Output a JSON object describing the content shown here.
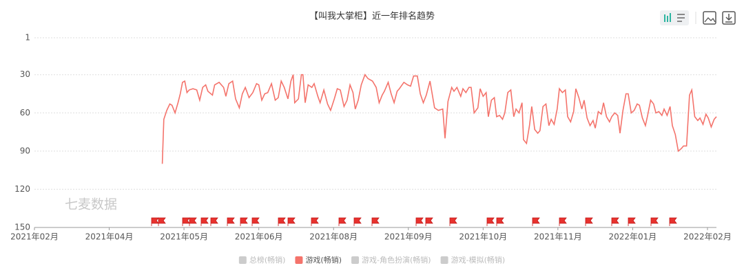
{
  "chart_data": {
    "type": "line",
    "title": "【叫我大掌柜】近一年排名趋势",
    "watermark": "七麦数据",
    "xlim": [
      0,
      9.12
    ],
    "xticks": [
      {
        "value": 0,
        "label": "2021年02月"
      },
      {
        "value": 1,
        "label": "2021年04月"
      },
      {
        "value": 2,
        "label": "2021年05月"
      },
      {
        "value": 3,
        "label": "2021年06月"
      },
      {
        "value": 4,
        "label": "2021年08月"
      },
      {
        "value": 5,
        "label": "2021年09月"
      },
      {
        "value": 6,
        "label": "2021年10月"
      },
      {
        "value": 7,
        "label": "2021年11月"
      },
      {
        "value": 8,
        "label": "2022年01月"
      },
      {
        "value": 9,
        "label": "2022年02月"
      }
    ],
    "ylim": [
      150,
      1
    ],
    "yticks": [
      1,
      30,
      60,
      90,
      120,
      150
    ],
    "grid": true,
    "x": [
      1.71,
      1.73,
      1.77,
      1.81,
      1.84,
      1.88,
      1.92,
      1.95,
      1.98,
      2.01,
      2.04,
      2.07,
      2.12,
      2.17,
      2.21,
      2.25,
      2.29,
      2.32,
      2.38,
      2.41,
      2.47,
      2.53,
      2.56,
      2.6,
      2.65,
      2.69,
      2.74,
      2.78,
      2.82,
      2.87,
      2.92,
      2.97,
      3.0,
      3.04,
      3.08,
      3.12,
      3.17,
      3.22,
      3.26,
      3.3,
      3.34,
      3.39,
      3.43,
      3.46,
      3.48,
      3.53,
      3.57,
      3.59,
      3.62,
      3.66,
      3.71,
      3.74,
      3.79,
      3.82,
      3.87,
      3.92,
      3.96,
      4.01,
      4.05,
      4.09,
      4.14,
      4.18,
      4.22,
      4.26,
      4.29,
      4.33,
      4.37,
      4.42,
      4.46,
      4.52,
      4.57,
      4.61,
      4.65,
      4.68,
      4.73,
      4.77,
      4.81,
      4.85,
      4.88,
      4.94,
      4.99,
      5.03,
      5.07,
      5.12,
      5.16,
      5.2,
      5.24,
      5.29,
      5.35,
      5.4,
      5.46,
      5.49,
      5.53,
      5.58,
      5.61,
      5.65,
      5.7,
      5.73,
      5.77,
      5.81,
      5.84,
      5.88,
      5.93,
      5.96,
      6.0,
      6.04,
      6.07,
      6.11,
      6.15,
      6.18,
      6.22,
      6.26,
      6.29,
      6.33,
      6.37,
      6.41,
      6.44,
      6.48,
      6.52,
      6.54,
      6.58,
      6.62,
      6.65,
      6.69,
      6.73,
      6.76,
      6.8,
      6.84,
      6.88,
      6.91,
      6.95,
      6.99,
      7.02,
      7.06,
      7.1,
      7.13,
      7.17,
      7.21,
      7.24,
      7.28,
      7.32,
      7.35,
      7.39,
      7.43,
      7.47,
      7.5,
      7.54,
      7.58,
      7.61,
      7.65,
      7.69,
      7.72,
      7.76,
      7.8,
      7.83,
      7.87,
      7.91,
      7.94,
      7.98,
      8.02,
      8.06,
      8.09,
      8.13,
      8.17,
      8.2,
      8.24,
      8.28,
      8.31,
      8.35,
      8.39,
      8.42,
      8.46,
      8.5,
      8.53,
      8.57,
      8.61,
      8.65,
      8.68,
      8.72,
      8.76,
      8.79,
      8.83,
      8.87,
      8.9,
      8.94,
      8.98,
      9.01,
      9.05,
      9.09,
      9.12
    ],
    "series": [
      {
        "name": "游戏(畅销)",
        "color": "#f4736b",
        "values": [
          100,
          65,
          58,
          53,
          54,
          60,
          52,
          45,
          36,
          35,
          44,
          42,
          41,
          42,
          50,
          40,
          38,
          43,
          46,
          38,
          36,
          40,
          47,
          37,
          35,
          49,
          56,
          45,
          40,
          48,
          44,
          37,
          38,
          50,
          45,
          44,
          37,
          50,
          48,
          35,
          40,
          49,
          35,
          30,
          52,
          49,
          30,
          30,
          52,
          38,
          40,
          37,
          47,
          52,
          42,
          53,
          58,
          49,
          41,
          42,
          55,
          50,
          38,
          44,
          57,
          50,
          38,
          30,
          33,
          35,
          40,
          52,
          46,
          43,
          36,
          45,
          52,
          43,
          41,
          36,
          38,
          39,
          31,
          31,
          45,
          52,
          46,
          35,
          56,
          58,
          57,
          80,
          51,
          40,
          43,
          40,
          47,
          41,
          44,
          40,
          40,
          60,
          56,
          41,
          47,
          44,
          63,
          50,
          48,
          63,
          62,
          65,
          60,
          44,
          42,
          63,
          57,
          60,
          52,
          81,
          84,
          70,
          55,
          73,
          76,
          74,
          55,
          53,
          70,
          65,
          69,
          57,
          41,
          44,
          42,
          63,
          67,
          59,
          41,
          48,
          57,
          50,
          64,
          70,
          66,
          72,
          59,
          61,
          52,
          63,
          67,
          63,
          60,
          62,
          76,
          58,
          45,
          45,
          60,
          58,
          53,
          54,
          64,
          70,
          62,
          50,
          53,
          60,
          59,
          62,
          57,
          62,
          55,
          70,
          77,
          90,
          88,
          86,
          86,
          46,
          42,
          63,
          66,
          64,
          69,
          61,
          64,
          71,
          65,
          63
        ]
      }
    ],
    "inactive_legend": [
      "总榜(畅销)",
      "游戏-角色扮演(畅销)",
      "游戏-模拟(畅销)"
    ],
    "inactive_color": "#cccccc"
  }
}
